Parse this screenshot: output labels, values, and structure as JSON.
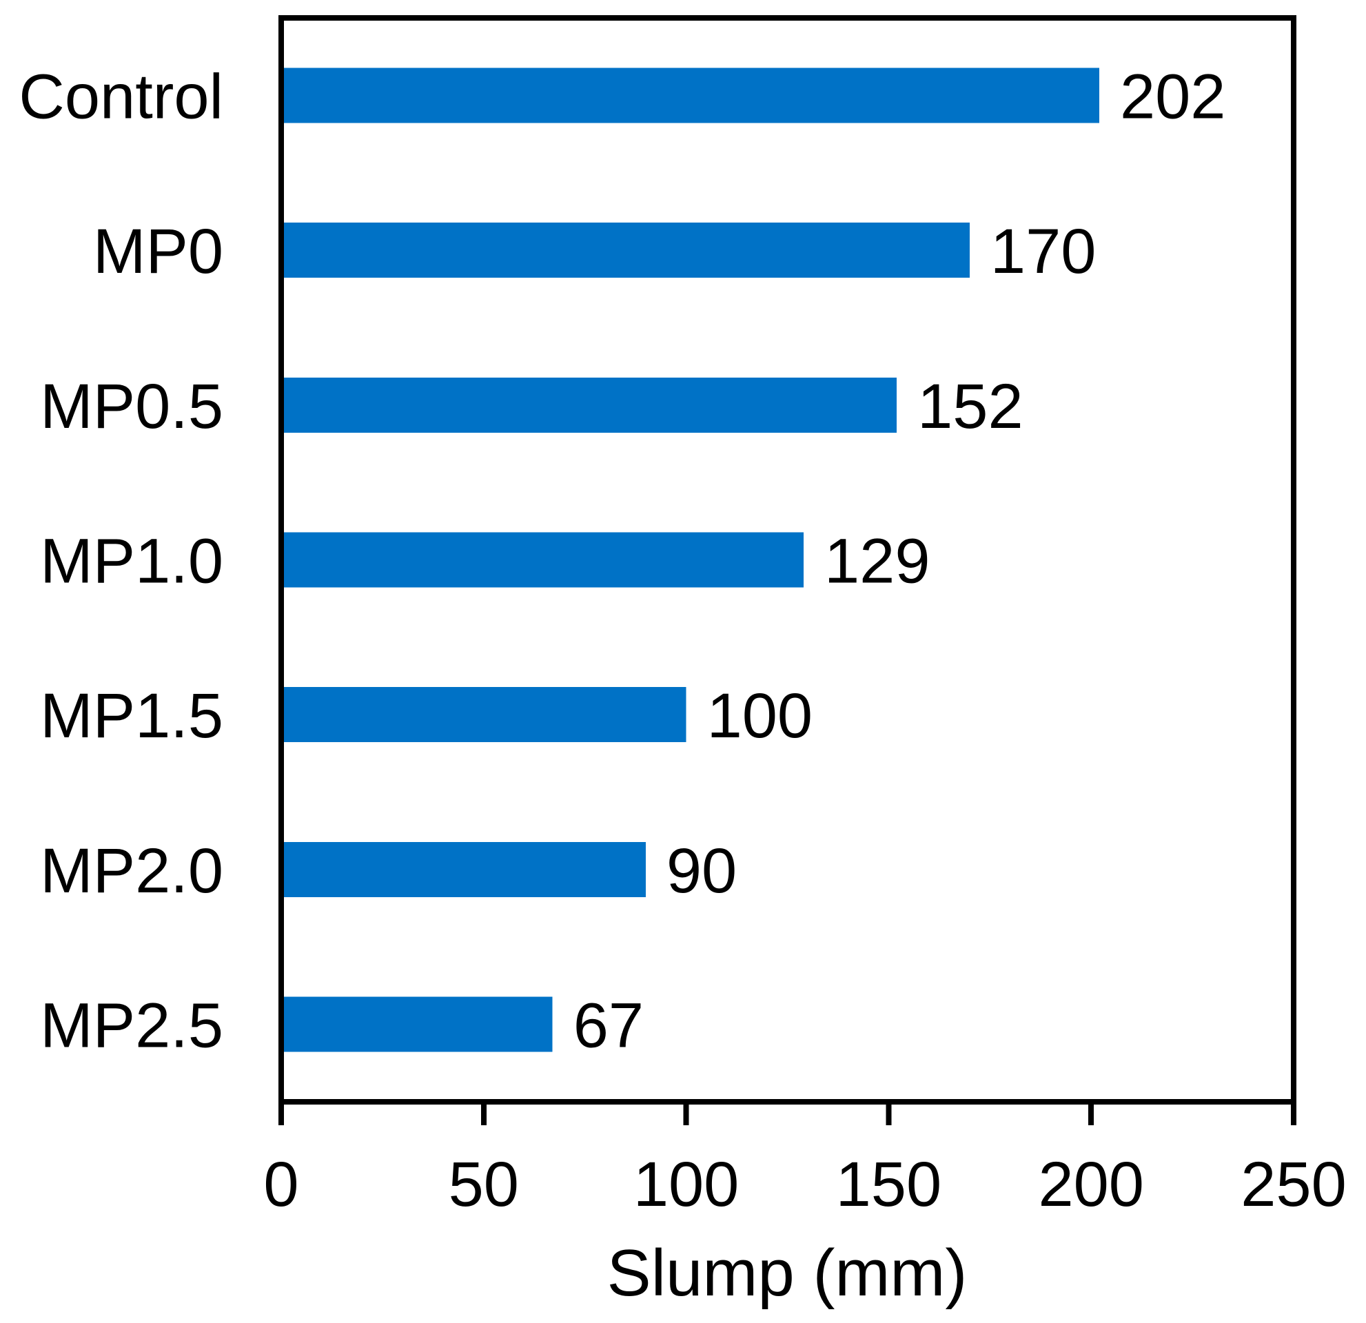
{
  "chart_data": {
    "type": "bar",
    "orientation": "horizontal",
    "title": "",
    "xlabel": "Slump (mm)",
    "ylabel": "",
    "categories": [
      "Control",
      "MP0",
      "MP0.5",
      "MP1.0",
      "MP1.5",
      "MP2.0",
      "MP2.5"
    ],
    "values": [
      202,
      170,
      152,
      129,
      100,
      90,
      67
    ],
    "value_labels": [
      "202",
      "170",
      "152",
      "129",
      "100",
      "90",
      "67"
    ],
    "xlim": [
      0,
      250
    ],
    "xticks": [
      0,
      50,
      100,
      150,
      200,
      250
    ],
    "xtick_labels": [
      "0",
      "50",
      "100",
      "150",
      "200",
      "250"
    ],
    "grid": false,
    "legend": false,
    "bar_color": "#0072C6",
    "axis_color": "#000000",
    "text_color": "#000000",
    "background_color": "#FFFFFF"
  }
}
